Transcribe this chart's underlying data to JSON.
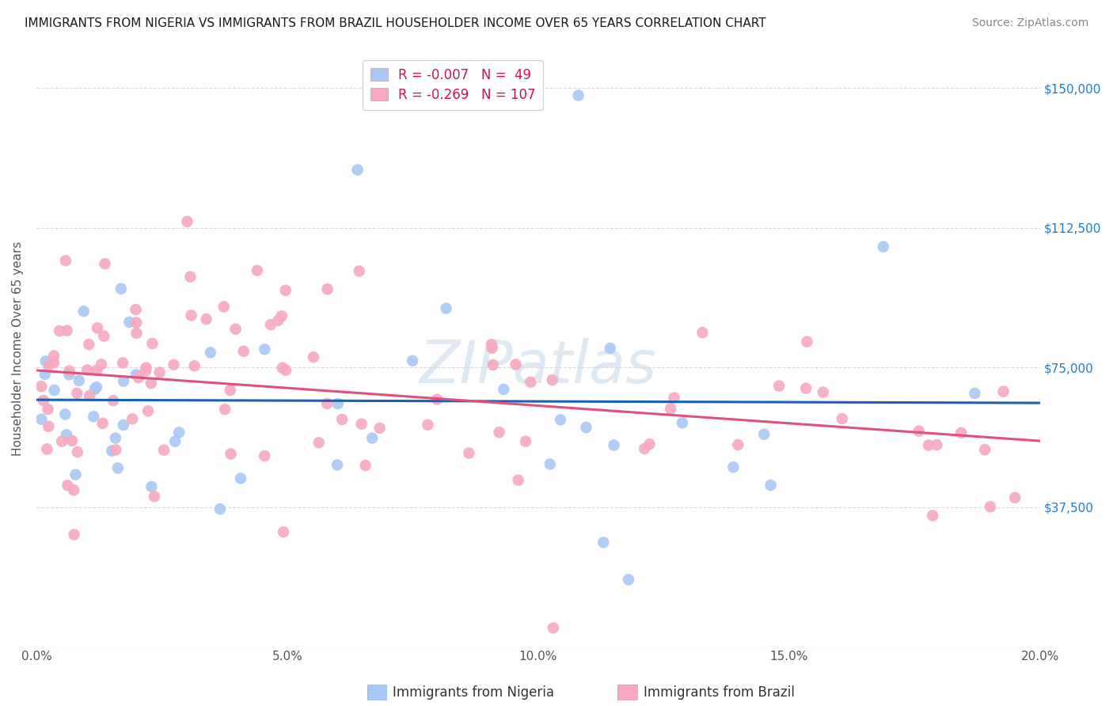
{
  "title": "IMMIGRANTS FROM NIGERIA VS IMMIGRANTS FROM BRAZIL HOUSEHOLDER INCOME OVER 65 YEARS CORRELATION CHART",
  "source": "Source: ZipAtlas.com",
  "ylabel": "Householder Income Over 65 years",
  "legend_nigeria": "Immigrants from Nigeria",
  "legend_brazil": "Immigrants from Brazil",
  "R_nigeria": -0.007,
  "N_nigeria": 49,
  "R_brazil": -0.269,
  "N_brazil": 107,
  "yticks": [
    0,
    37500,
    75000,
    112500,
    150000
  ],
  "ytick_labels": [
    "",
    "$37,500",
    "$75,000",
    "$112,500",
    "$150,000"
  ],
  "xticks": [
    0.0,
    0.05,
    0.1,
    0.15,
    0.2
  ],
  "xtick_labels": [
    "0.0%",
    "5.0%",
    "10.0%",
    "15.0%",
    "20.0%"
  ],
  "xlim": [
    0.0,
    0.2
  ],
  "ylim": [
    0,
    160000
  ],
  "color_nigeria": "#a8c8f8",
  "color_brazil": "#f8a8c0",
  "line_color_nigeria": "#1a5fb4",
  "line_color_brazil": "#e0507a",
  "watermark": "ZIPatlas",
  "background_color": "#ffffff",
  "grid_color": "#d8d8d8",
  "title_fontsize": 11,
  "source_fontsize": 10,
  "tick_fontsize": 11,
  "ylabel_fontsize": 11,
  "legend_fontsize": 12
}
